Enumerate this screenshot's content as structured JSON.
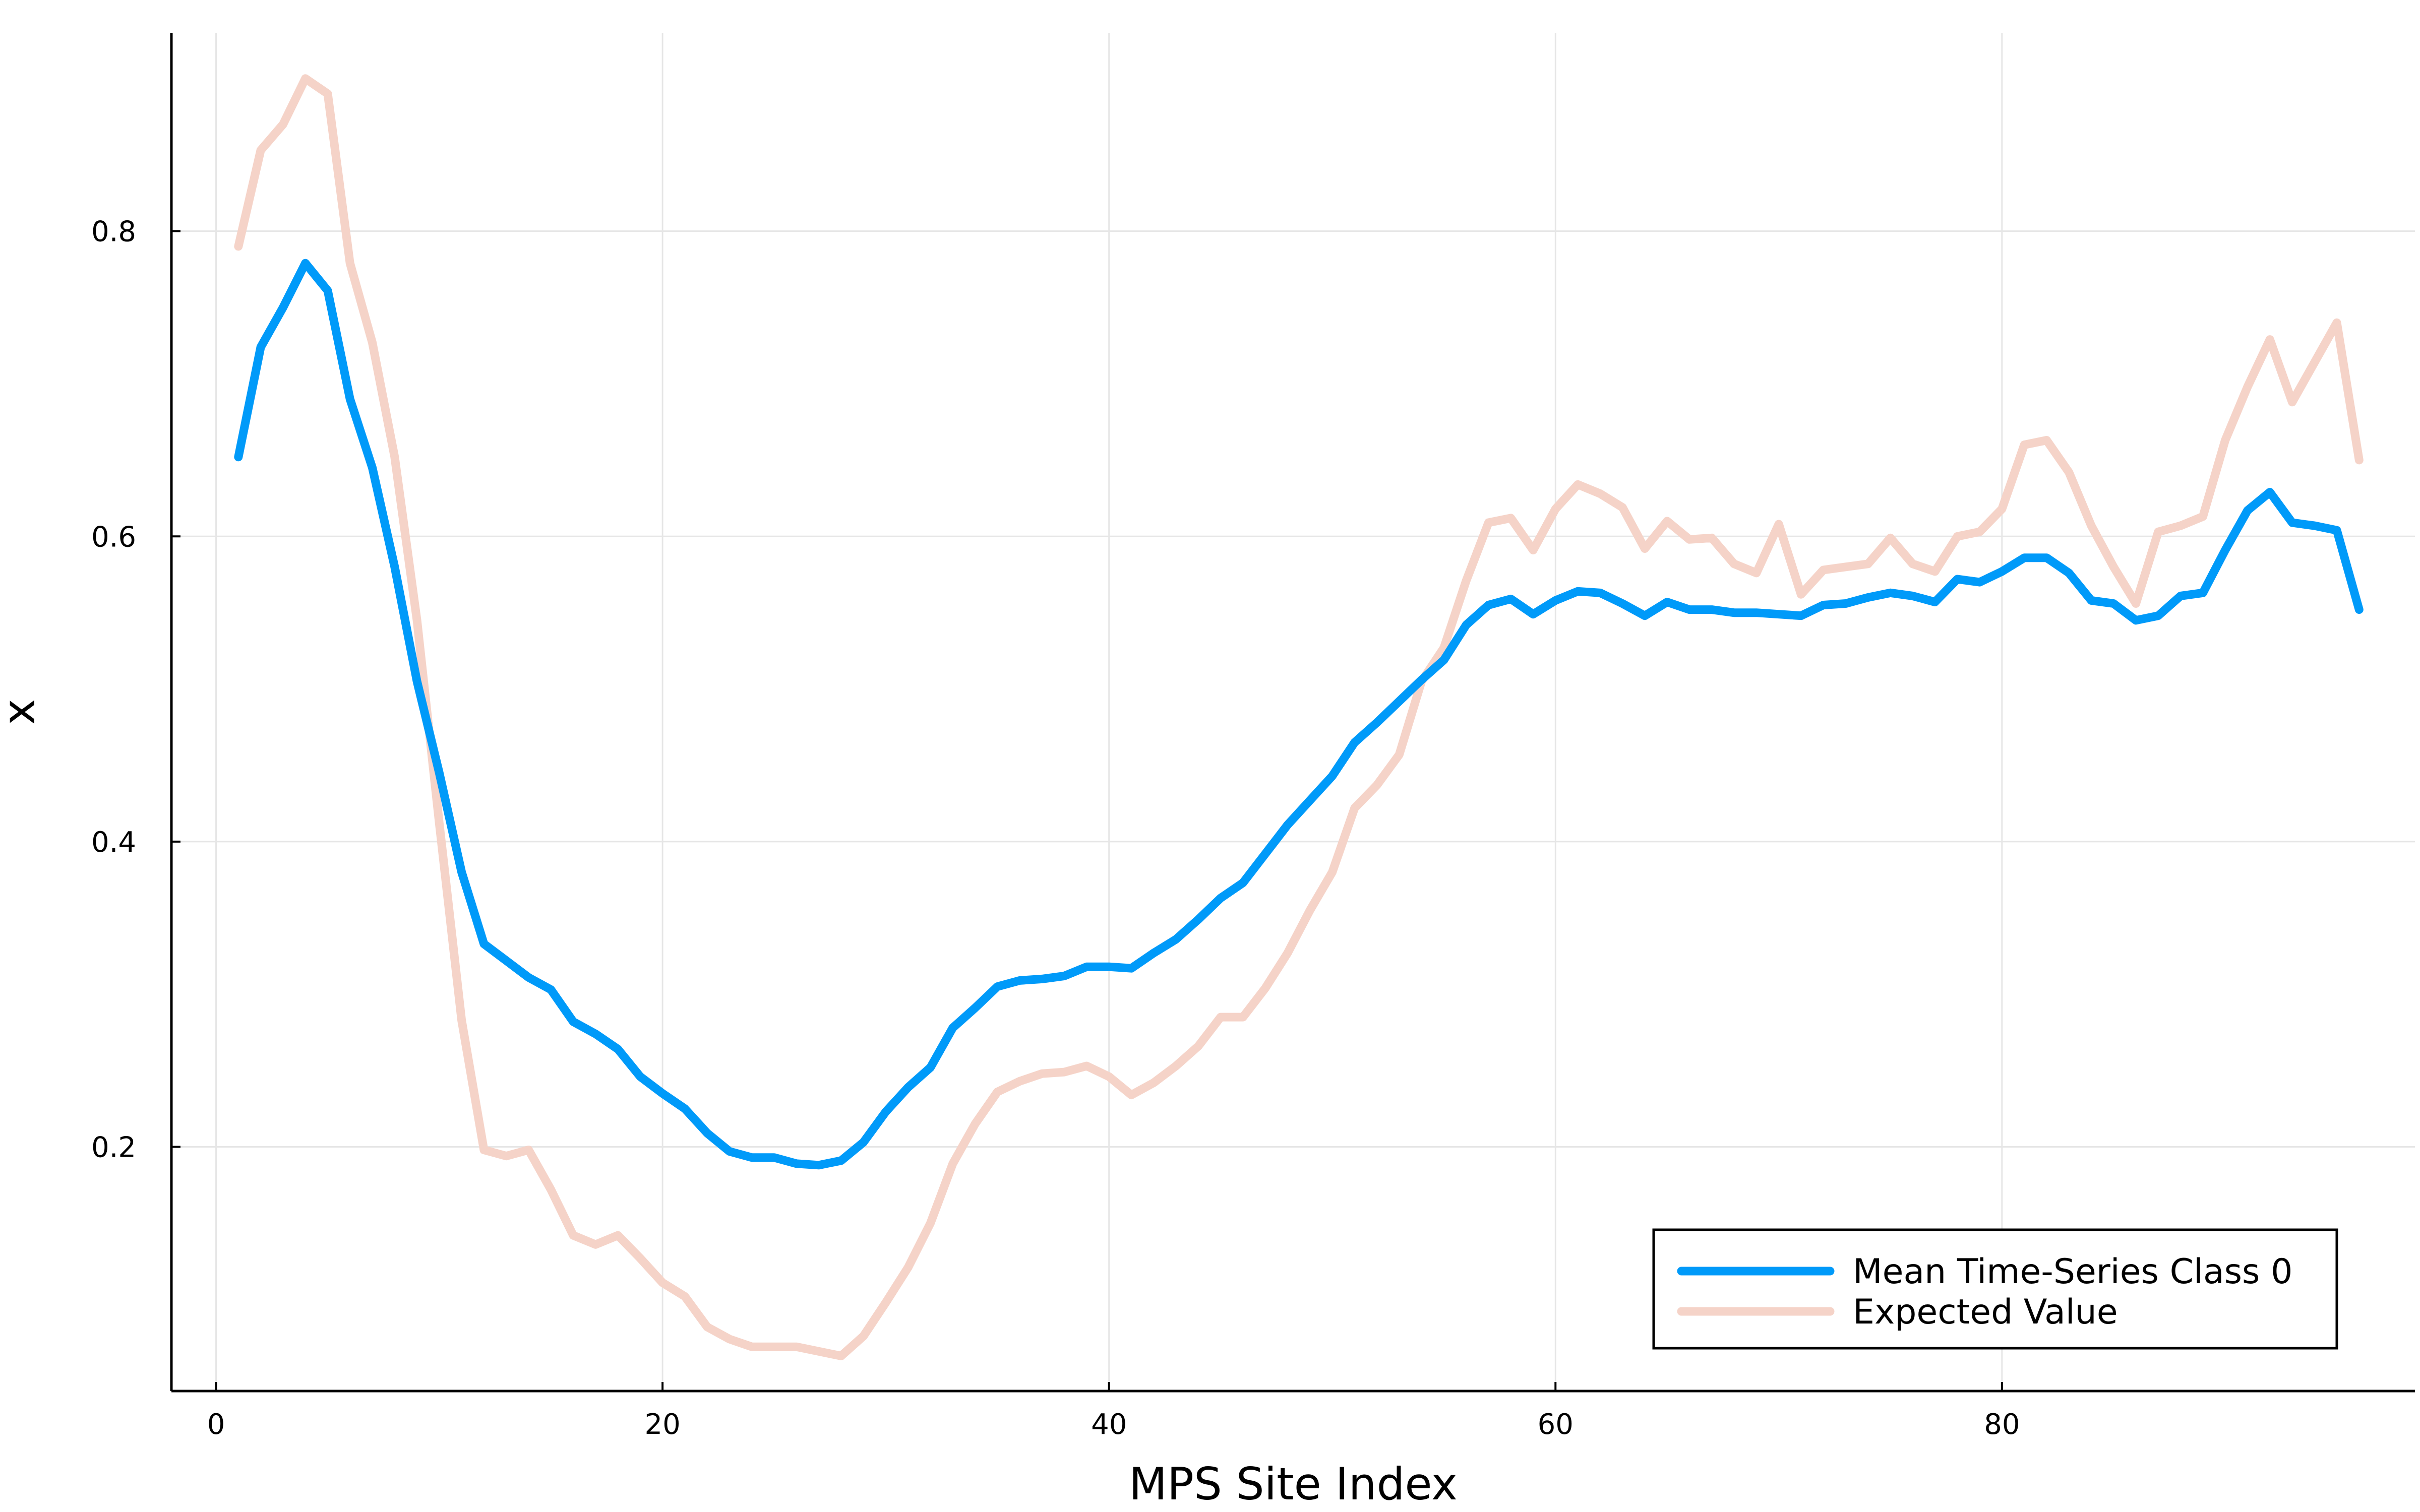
{
  "chart_data": {
    "type": "line",
    "title": "",
    "xlabel": "MPS Site Index",
    "ylabel": "x",
    "xlim": [
      -2,
      98.5
    ],
    "ylim": [
      0.04,
      0.93
    ],
    "x_ticks": [
      0,
      20,
      40,
      60,
      80
    ],
    "x_tick_labels": [
      "0",
      "20",
      "40",
      "60",
      "80"
    ],
    "y_ticks": [
      0.2,
      0.4,
      0.6,
      0.8
    ],
    "y_tick_labels": [
      "0.2",
      "0.4",
      "0.6",
      "0.8"
    ],
    "grid": true,
    "legend_position": "bottom-right",
    "x": [
      1,
      2,
      3,
      4,
      5,
      6,
      7,
      8,
      9,
      10,
      11,
      12,
      13,
      14,
      15,
      16,
      17,
      18,
      19,
      20,
      21,
      22,
      23,
      24,
      25,
      26,
      27,
      28,
      29,
      30,
      31,
      32,
      33,
      34,
      35,
      36,
      37,
      38,
      39,
      40,
      41,
      42,
      43,
      44,
      45,
      46,
      47,
      48,
      49,
      50,
      51,
      52,
      53,
      54,
      55,
      56,
      57,
      58,
      59,
      60,
      61,
      62,
      63,
      64,
      65,
      66,
      67,
      68,
      69,
      70,
      71,
      72,
      73,
      74,
      75,
      76,
      77,
      78,
      79,
      80,
      81,
      82,
      83,
      84,
      85,
      86,
      87,
      88,
      89,
      90,
      91,
      92,
      93,
      94,
      95,
      96
    ],
    "series": [
      {
        "name": "Mean Time-Series Class 0",
        "color": "#009af9",
        "values": [
          0.652,
          0.724,
          0.75,
          0.779,
          0.761,
          0.69,
          0.645,
          0.58,
          0.505,
          0.445,
          0.38,
          0.333,
          0.322,
          0.311,
          0.303,
          0.282,
          0.274,
          0.264,
          0.246,
          0.235,
          0.225,
          0.209,
          0.197,
          0.193,
          0.193,
          0.189,
          0.188,
          0.191,
          0.203,
          0.223,
          0.239,
          0.252,
          0.278,
          0.291,
          0.305,
          0.309,
          0.31,
          0.312,
          0.318,
          0.318,
          0.317,
          0.327,
          0.336,
          0.349,
          0.363,
          0.373,
          0.392,
          0.411,
          0.427,
          0.443,
          0.465,
          0.478,
          0.492,
          0.506,
          0.519,
          0.542,
          0.555,
          0.559,
          0.549,
          0.558,
          0.564,
          0.563,
          0.556,
          0.548,
          0.557,
          0.552,
          0.552,
          0.55,
          0.55,
          0.549,
          0.548,
          0.555,
          0.556,
          0.56,
          0.563,
          0.561,
          0.557,
          0.572,
          0.57,
          0.577,
          0.586,
          0.586,
          0.576,
          0.558,
          0.556,
          0.545,
          0.548,
          0.561,
          0.563,
          0.591,
          0.617,
          0.629,
          0.609,
          0.607,
          0.604,
          0.552
        ]
      },
      {
        "name": "Expected Value",
        "color": "#f5d3c8",
        "values": [
          0.79,
          0.853,
          0.87,
          0.9,
          0.89,
          0.779,
          0.727,
          0.652,
          0.545,
          0.412,
          0.283,
          0.198,
          0.194,
          0.198,
          0.172,
          0.142,
          0.136,
          0.142,
          0.127,
          0.111,
          0.102,
          0.082,
          0.074,
          0.069,
          0.069,
          0.069,
          0.066,
          0.063,
          0.076,
          0.098,
          0.121,
          0.15,
          0.189,
          0.215,
          0.236,
          0.243,
          0.248,
          0.249,
          0.253,
          0.246,
          0.234,
          0.242,
          0.253,
          0.266,
          0.285,
          0.285,
          0.304,
          0.327,
          0.355,
          0.38,
          0.422,
          0.437,
          0.457,
          0.505,
          0.527,
          0.571,
          0.609,
          0.612,
          0.591,
          0.618,
          0.634,
          0.628,
          0.619,
          0.592,
          0.61,
          0.598,
          0.599,
          0.582,
          0.576,
          0.608,
          0.562,
          0.578,
          0.58,
          0.582,
          0.599,
          0.582,
          0.577,
          0.6,
          0.603,
          0.618,
          0.66,
          0.663,
          0.642,
          0.607,
          0.58,
          0.556,
          0.603,
          0.607,
          0.613,
          0.663,
          0.698,
          0.729,
          0.688,
          0.714,
          0.74,
          0.65
        ]
      }
    ]
  }
}
